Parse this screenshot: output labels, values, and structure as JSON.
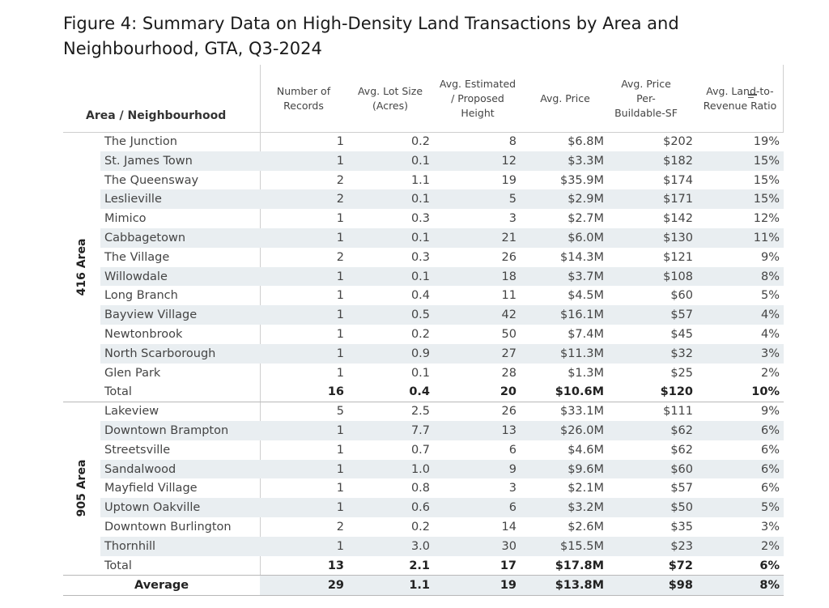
{
  "title": "Figure 4: Summary Data on High-Density Land Transactions by Area and Neighbourhood, GTA, Q3-2024",
  "colors": {
    "row_shade": "#e9eef1",
    "divider": "#cfcfcf",
    "text": "#444444"
  },
  "chart_data": {
    "type": "table",
    "title": "Figure 4: Summary Data on High-Density Land Transactions by Area and Neighbourhood, GTA, Q3-2024",
    "row_header": "Area / Neighbourhood",
    "columns": [
      "Number of Records",
      "Avg. Lot Size (Acres)",
      "Avg. Estimated / Proposed Height",
      "Avg. Price",
      "Avg. Price Per-Buildable-SF",
      "Avg. Land-to-Revenue Ratio"
    ],
    "column_lines": [
      [
        "Number of",
        "Records"
      ],
      [
        "Avg. Lot Size",
        "(Acres)"
      ],
      [
        "Avg. Estimated",
        "/ Proposed",
        "Height"
      ],
      [
        "Avg. Price"
      ],
      [
        "Avg. Price",
        "Per-",
        "Buildable-SF"
      ],
      [
        "Avg. Land-to-",
        "Revenue Ratio"
      ]
    ],
    "groups": [
      {
        "name": "416 Area",
        "rows": [
          [
            "The Junction",
            "1",
            "0.2",
            "8",
            "$6.8M",
            "$202",
            "19%"
          ],
          [
            "St. James Town",
            "1",
            "0.1",
            "12",
            "$3.3M",
            "$182",
            "15%"
          ],
          [
            "The Queensway",
            "2",
            "1.1",
            "19",
            "$35.9M",
            "$174",
            "15%"
          ],
          [
            "Leslieville",
            "2",
            "0.1",
            "5",
            "$2.9M",
            "$171",
            "15%"
          ],
          [
            "Mimico",
            "1",
            "0.3",
            "3",
            "$2.7M",
            "$142",
            "12%"
          ],
          [
            "Cabbagetown",
            "1",
            "0.1",
            "21",
            "$6.0M",
            "$130",
            "11%"
          ],
          [
            "The Village",
            "2",
            "0.3",
            "26",
            "$14.3M",
            "$121",
            "9%"
          ],
          [
            "Willowdale",
            "1",
            "0.1",
            "18",
            "$3.7M",
            "$108",
            "8%"
          ],
          [
            "Long Branch",
            "1",
            "0.4",
            "11",
            "$4.5M",
            "$60",
            "5%"
          ],
          [
            "Bayview Village",
            "1",
            "0.5",
            "42",
            "$16.1M",
            "$57",
            "4%"
          ],
          [
            "Newtonbrook",
            "1",
            "0.2",
            "50",
            "$7.4M",
            "$45",
            "4%"
          ],
          [
            "North Scarborough",
            "1",
            "0.9",
            "27",
            "$11.3M",
            "$32",
            "3%"
          ],
          [
            "Glen Park",
            "1",
            "0.1",
            "28",
            "$1.3M",
            "$25",
            "2%"
          ]
        ],
        "total": [
          "Total",
          "16",
          "0.4",
          "20",
          "$10.6M",
          "$120",
          "10%"
        ]
      },
      {
        "name": "905 Area",
        "rows": [
          [
            "Lakeview",
            "5",
            "2.5",
            "26",
            "$33.1M",
            "$111",
            "9%"
          ],
          [
            "Downtown Brampton",
            "1",
            "7.7",
            "13",
            "$26.0M",
            "$62",
            "6%"
          ],
          [
            "Streetsville",
            "1",
            "0.7",
            "6",
            "$4.6M",
            "$62",
            "6%"
          ],
          [
            "Sandalwood",
            "1",
            "1.0",
            "9",
            "$9.6M",
            "$60",
            "6%"
          ],
          [
            "Mayfield Village",
            "1",
            "0.8",
            "3",
            "$2.1M",
            "$57",
            "6%"
          ],
          [
            "Uptown Oakville",
            "1",
            "0.6",
            "6",
            "$3.2M",
            "$50",
            "5%"
          ],
          [
            "Downtown Burlington",
            "2",
            "0.2",
            "14",
            "$2.6M",
            "$35",
            "3%"
          ],
          [
            "Thornhill",
            "1",
            "3.0",
            "30",
            "$15.5M",
            "$23",
            "2%"
          ]
        ],
        "total": [
          "Total",
          "13",
          "2.1",
          "17",
          "$17.8M",
          "$72",
          "6%"
        ]
      }
    ],
    "average": [
      "Average",
      "29",
      "1.1",
      "19",
      "$13.8M",
      "$98",
      "8%"
    ]
  }
}
